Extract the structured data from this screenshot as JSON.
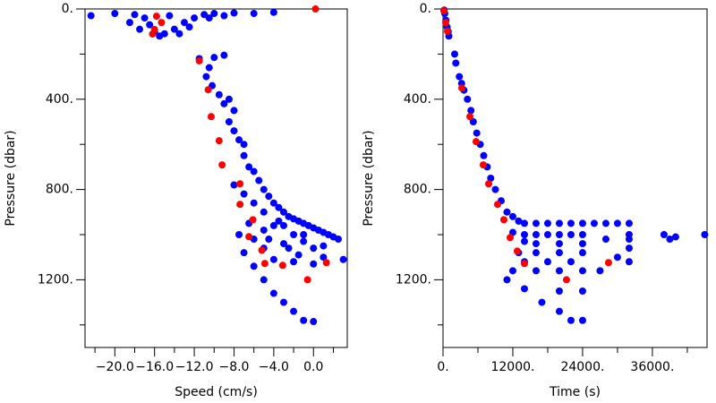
{
  "chart_data": [
    {
      "type": "scatter",
      "xlabel": "Speed (cm/s)",
      "ylabel": "Pressure (dbar)",
      "xlim": [
        -23,
        3.4
      ],
      "ylim": [
        0,
        1500
      ],
      "y_reversed": true,
      "xticks": [
        {
          "value": -20,
          "label": "−20.0"
        },
        {
          "value": -16,
          "label": "−16.0"
        },
        {
          "value": -12,
          "label": "−12.0"
        },
        {
          "value": -8,
          "label": "−8.0"
        },
        {
          "value": -4,
          "label": "−4.0"
        },
        {
          "value": 0,
          "label": "0.0"
        }
      ],
      "xminor": [
        -22,
        -18,
        -14,
        -10,
        -6,
        -2,
        2
      ],
      "yticks": [
        {
          "value": 0,
          "label": "0."
        },
        {
          "value": 400,
          "label": "400."
        },
        {
          "value": 800,
          "label": "800."
        },
        {
          "value": 1200,
          "label": "1200."
        }
      ],
      "yminor": [
        200,
        600,
        1000,
        1400
      ],
      "series": [
        {
          "color": "#0000ff",
          "x": [
            -22.4,
            -20,
            -18,
            -17,
            -16.5,
            -16,
            -15,
            -14,
            -13,
            -12,
            -11,
            -10,
            -8,
            -6,
            -4,
            -18.5,
            -17.5,
            -15.5,
            -13.5,
            -12.5,
            -14.5,
            -10.5,
            -9,
            -11.5,
            -10,
            -9,
            -10.5,
            -10.8,
            -10.2,
            -9.5,
            -9,
            -8.5,
            -8,
            -8.5,
            -8,
            -7.5,
            -7,
            -7,
            -6.5,
            -6,
            -5.5,
            -5,
            -4.5,
            -4,
            -3.5,
            -3,
            -2.5,
            -2,
            -1.5,
            -1,
            -0.5,
            0,
            0.5,
            1,
            1.5,
            2,
            2.5,
            3,
            -3,
            -2,
            -1,
            0,
            1,
            -4,
            -5,
            -3,
            -1.5,
            -6,
            -5,
            -4,
            -7,
            -6,
            -5,
            -4,
            -3,
            -2,
            -1,
            0,
            -7.5,
            -6.5,
            -2,
            0,
            1,
            -1,
            -3.5,
            -5,
            -6,
            -7,
            -8,
            -4.5,
            -2.5
          ],
          "y": [
            30,
            20,
            25,
            40,
            70,
            100,
            110,
            90,
            60,
            40,
            25,
            20,
            18,
            20,
            15,
            60,
            90,
            120,
            110,
            80,
            30,
            40,
            30,
            220,
            215,
            205,
            260,
            300,
            340,
            380,
            420,
            400,
            450,
            500,
            540,
            580,
            600,
            650,
            700,
            720,
            760,
            800,
            830,
            860,
            880,
            900,
            920,
            930,
            940,
            950,
            960,
            970,
            980,
            990,
            1000,
            1010,
            1020,
            1110,
            960,
            1000,
            1030,
            1060,
            1100,
            960,
            980,
            1040,
            1090,
            1020,
            1060,
            1110,
            1080,
            1140,
            1200,
            1260,
            1300,
            1340,
            1380,
            1385,
            1000,
            950,
            1120,
            1130,
            1050,
            1000,
            940,
            900,
            860,
            820,
            780,
            1020,
            1060
          ]
        },
        {
          "color": "#ff0000",
          "x": [
            -15.8,
            -15.3,
            -16,
            -16.2,
            0.2,
            -11.5,
            -10.6,
            -10.3,
            -9.5,
            -9.2,
            -7.4,
            -7.4,
            -6.1,
            -6.5,
            -5.2,
            -4.9,
            -3.1,
            1.3,
            -0.6
          ],
          "y": [
            32,
            60,
            91,
            111,
            0,
            230,
            358,
            477,
            584,
            691,
            775,
            866,
            934,
            1009,
            1069,
            1128,
            1136,
            1124,
            1200
          ]
        }
      ]
    },
    {
      "type": "scatter",
      "xlabel": "Time (s)",
      "ylabel": "Pressure (dbar)",
      "xlim": [
        0,
        45400
      ],
      "ylim": [
        0,
        1500
      ],
      "y_reversed": true,
      "xticks": [
        {
          "value": 0,
          "label": "0."
        },
        {
          "value": 12000,
          "label": "12000."
        },
        {
          "value": 24000,
          "label": "24000."
        },
        {
          "value": 36000,
          "label": "36000."
        }
      ],
      "xminor": [
        6000,
        18000,
        30000,
        42000
      ],
      "yticks": [
        {
          "value": 0,
          "label": "0."
        },
        {
          "value": 400,
          "label": "400."
        },
        {
          "value": 800,
          "label": "800."
        },
        {
          "value": 1200,
          "label": "1200."
        }
      ],
      "yminor": [
        200,
        600,
        1000,
        1400
      ],
      "series": [
        {
          "color": "#0000ff",
          "x": [
            200,
            300,
            500,
            700,
            900,
            1000,
            2000,
            2200,
            2800,
            3200,
            3600,
            4200,
            4800,
            5200,
            5800,
            6400,
            7000,
            7600,
            8200,
            9000,
            10000,
            11000,
            12000,
            13000,
            14000,
            16000,
            18000,
            20000,
            22000,
            24000,
            26000,
            28000,
            30000,
            32000,
            12000,
            14000,
            16000,
            18000,
            20000,
            22000,
            24000,
            28000,
            32000,
            14000,
            16000,
            20000,
            24000,
            13000,
            16000,
            20000,
            24000,
            32000,
            14000,
            18000,
            22000,
            30000,
            32000,
            12000,
            16000,
            20000,
            24000,
            27000,
            11000,
            14000,
            17000,
            20000,
            22000,
            24000,
            24000,
            20000,
            38000,
            39000,
            40000,
            45000,
            32000
          ],
          "y": [
            5,
            20,
            50,
            80,
            100,
            120,
            200,
            240,
            300,
            330,
            360,
            400,
            450,
            500,
            550,
            600,
            650,
            700,
            750,
            800,
            850,
            900,
            920,
            940,
            950,
            950,
            950,
            950,
            950,
            950,
            950,
            950,
            950,
            950,
            990,
            1000,
            1000,
            1000,
            1000,
            1000,
            1000,
            1020,
            1020,
            1030,
            1040,
            1040,
            1040,
            1080,
            1080,
            1080,
            1080,
            1060,
            1120,
            1120,
            1120,
            1100,
            1120,
            1160,
            1160,
            1160,
            1160,
            1160,
            1200,
            1240,
            1300,
            1340,
            1380,
            1380,
            1250,
            1250,
            1000,
            1020,
            1010,
            1000,
            1000
          ]
        },
        {
          "color": "#ff0000",
          "x": [
            460,
            770,
            3230,
            4620,
            5690,
            6920,
            7850,
            9380,
            10460,
            11540,
            12770,
            14000,
            21230,
            28460,
            150
          ],
          "y": [
            60,
            99,
            350,
            477,
            588,
            691,
            775,
            866,
            934,
            1013,
            1073,
            1128,
            1200,
            1124,
            8
          ]
        }
      ]
    }
  ]
}
